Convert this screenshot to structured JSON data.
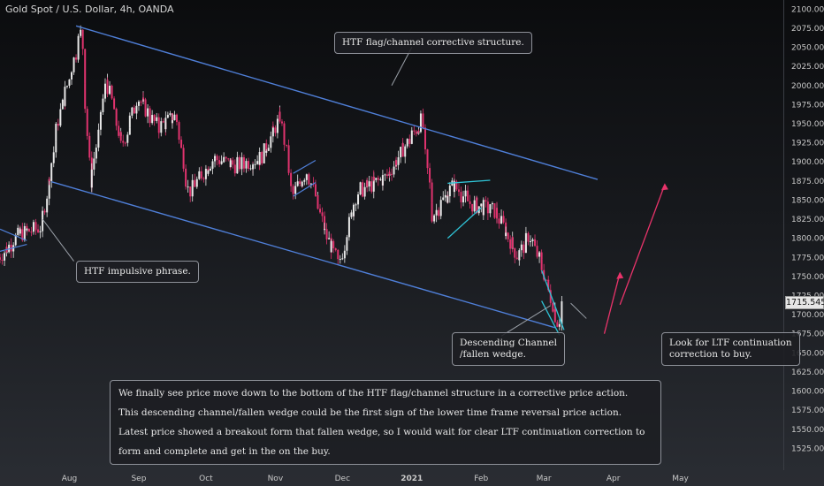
{
  "chart_data": {
    "type": "candlestick",
    "title": "Gold Spot / U.S. Dollar, 4h, OANDA",
    "current_price": "1715.545",
    "ylim": [
      1500,
      2105
    ],
    "y_ticks": [
      1525,
      1550,
      1575,
      1600,
      1625,
      1650,
      1675,
      1700,
      1725,
      1750,
      1775,
      1800,
      1825,
      1850,
      1875,
      1900,
      1925,
      1950,
      1975,
      2000,
      2025,
      2050,
      2075,
      2100
    ],
    "y_tick_labels": [
      "1525.000",
      "1550.000",
      "1575.000",
      "1600.000",
      "1625.000",
      "1650.000",
      "1675.000",
      "1700.000",
      "1725.000",
      "1750.000",
      "1775.000",
      "1800.000",
      "1825.000",
      "1850.000",
      "1875.000",
      "1900.000",
      "1925.000",
      "1950.000",
      "1975.000",
      "2000.000",
      "2025.000",
      "2050.000",
      "2075.000",
      "2100.000"
    ],
    "x_ticks": [
      "Aug",
      "Sep",
      "Oct",
      "Nov",
      "Dec",
      "2021",
      "Feb",
      "Mar",
      "Apr",
      "May"
    ],
    "price_path": [
      [
        "2020-07-01",
        1775
      ],
      [
        "2020-07-10",
        1805
      ],
      [
        "2020-07-20",
        1815
      ],
      [
        "2020-07-28",
        1960
      ],
      [
        "2020-08-07",
        2072
      ],
      [
        "2020-08-11",
        1870
      ],
      [
        "2020-08-18",
        2010
      ],
      [
        "2020-08-25",
        1920
      ],
      [
        "2020-09-01",
        1985
      ],
      [
        "2020-09-10",
        1945
      ],
      [
        "2020-09-18",
        1960
      ],
      [
        "2020-09-24",
        1860
      ],
      [
        "2020-10-05",
        1905
      ],
      [
        "2020-10-15",
        1895
      ],
      [
        "2020-10-26",
        1905
      ],
      [
        "2020-11-04",
        1960
      ],
      [
        "2020-11-09",
        1855
      ],
      [
        "2020-11-16",
        1890
      ],
      [
        "2020-11-24",
        1805
      ],
      [
        "2020-11-30",
        1765
      ],
      [
        "2020-12-08",
        1860
      ],
      [
        "2020-12-21",
        1880
      ],
      [
        "2021-01-06",
        1955
      ],
      [
        "2021-01-11",
        1830
      ],
      [
        "2021-01-20",
        1870
      ],
      [
        "2021-01-28",
        1845
      ],
      [
        "2021-02-08",
        1835
      ],
      [
        "2021-02-18",
        1775
      ],
      [
        "2021-02-23",
        1805
      ],
      [
        "2021-03-01",
        1760
      ],
      [
        "2021-03-08",
        1688
      ],
      [
        "2021-03-10",
        1715.5
      ]
    ],
    "annotations": {
      "channel_note": "HTF flag/channel corrective structure.",
      "impulse_note": "HTF impulsive phrase.",
      "wedge_note_line1": "Descending Channel",
      "wedge_note_line2": "/fallen wedge.",
      "ltf_note_line1": "Look for LTF continuation",
      "ltf_note_line2": "correction to buy.",
      "summary_line1": "We finally see price move down to the bottom of the HTF flag/channel structure in a corrective price action.",
      "summary_line2": "This descending channel/fallen wedge could be the first sign of the lower time frame reversal price action.",
      "summary_line3": "Latest price showed a breakout form that fallen wedge, so I would wait for clear LTF continuation correction to form and complete and get in the on the buy."
    },
    "colors": {
      "up_candle": "#e8e8e8",
      "down_candle": "#e0336e",
      "channel_line": "#4f7fd8",
      "wedge_line": "#2fc3d6",
      "projection_arrow": "#e8336a",
      "background_top": "#0b0c0e",
      "background_bottom": "#2a2d33"
    },
    "grid": false
  }
}
